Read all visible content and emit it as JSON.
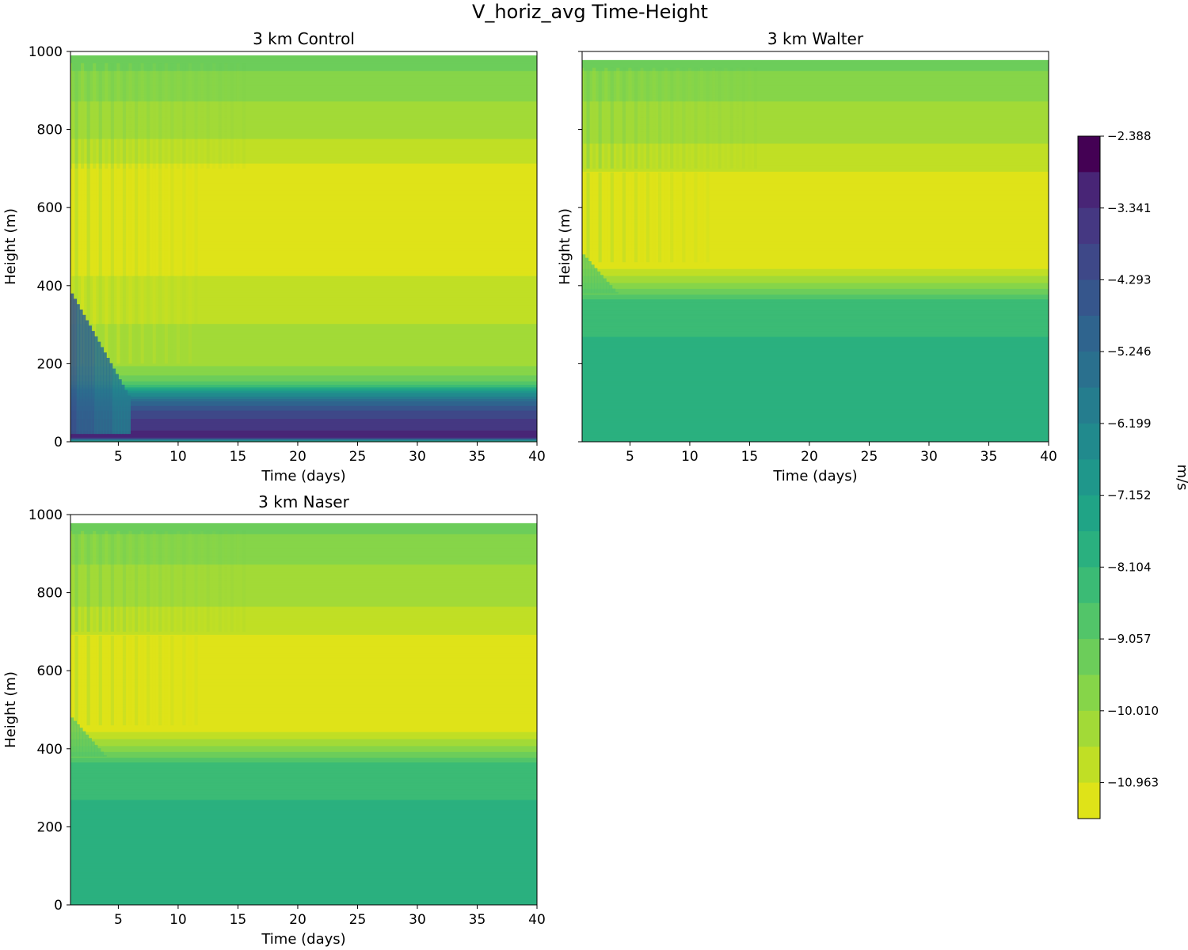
{
  "chart_data": {
    "type": "heatmap",
    "title": "V_horiz_avg Time-Height",
    "variable": "V_horiz_avg",
    "panels": [
      {
        "title": "3 km Control",
        "xlabel": "Time (days)",
        "ylabel": "Height (m)",
        "xlim": [
          1,
          40
        ],
        "ylim": [
          0,
          1000
        ],
        "xticks": [
          5,
          10,
          15,
          20,
          25,
          30,
          35,
          40
        ],
        "yticks": [
          0,
          200,
          400,
          600,
          800,
          1000
        ],
        "show_y_tick_labels": true,
        "data_top": 990,
        "profile": [
          {
            "h": 0,
            "v": -8.0
          },
          {
            "h": 12,
            "v": -2.6
          },
          {
            "h": 40,
            "v": -3.0
          },
          {
            "h": 70,
            "v": -3.5
          },
          {
            "h": 100,
            "v": -4.5
          },
          {
            "h": 130,
            "v": -6.5
          },
          {
            "h": 150,
            "v": -8.4
          },
          {
            "h": 175,
            "v": -9.2
          },
          {
            "h": 200,
            "v": -9.6
          },
          {
            "h": 250,
            "v": -9.8
          },
          {
            "h": 300,
            "v": -10.0
          },
          {
            "h": 360,
            "v": -10.3
          },
          {
            "h": 430,
            "v": -10.5
          },
          {
            "h": 450,
            "v": -10.8
          },
          {
            "h": 700,
            "v": -10.8
          },
          {
            "h": 720,
            "v": -10.3
          },
          {
            "h": 800,
            "v": -9.9
          },
          {
            "h": 880,
            "v": -9.5
          },
          {
            "h": 960,
            "v": -9.0
          },
          {
            "h": 990,
            "v": -8.6
          }
        ]
      },
      {
        "title": "3 km Walter",
        "xlabel": "Time (days)",
        "ylabel": "Height (m)",
        "xlim": [
          1,
          40
        ],
        "ylim": [
          0,
          1000
        ],
        "xticks": [
          5,
          10,
          15,
          20,
          25,
          30,
          35,
          40
        ],
        "yticks": [
          0,
          200,
          400,
          600,
          800,
          1000
        ],
        "show_y_tick_labels": false,
        "data_top": 978,
        "profile": [
          {
            "h": 0,
            "v": -7.4
          },
          {
            "h": 30,
            "v": -7.2
          },
          {
            "h": 200,
            "v": -7.3
          },
          {
            "h": 260,
            "v": -7.6
          },
          {
            "h": 360,
            "v": -7.9
          },
          {
            "h": 380,
            "v": -8.6
          },
          {
            "h": 410,
            "v": -9.6
          },
          {
            "h": 440,
            "v": -10.4
          },
          {
            "h": 460,
            "v": -10.8
          },
          {
            "h": 680,
            "v": -10.8
          },
          {
            "h": 700,
            "v": -10.3
          },
          {
            "h": 790,
            "v": -9.9
          },
          {
            "h": 880,
            "v": -9.5
          },
          {
            "h": 960,
            "v": -9.0
          },
          {
            "h": 978,
            "v": -8.6
          }
        ]
      },
      {
        "title": "3 km Naser",
        "xlabel": "Time (days)",
        "ylabel": "Height (m)",
        "xlim": [
          1,
          40
        ],
        "ylim": [
          0,
          1000
        ],
        "xticks": [
          5,
          10,
          15,
          20,
          25,
          30,
          35,
          40
        ],
        "yticks": [
          0,
          200,
          400,
          600,
          800,
          1000
        ],
        "show_y_tick_labels": true,
        "data_top": 978,
        "profile": [
          {
            "h": 0,
            "v": -7.4
          },
          {
            "h": 30,
            "v": -7.2
          },
          {
            "h": 200,
            "v": -7.3
          },
          {
            "h": 260,
            "v": -7.6
          },
          {
            "h": 360,
            "v": -7.9
          },
          {
            "h": 380,
            "v": -8.6
          },
          {
            "h": 410,
            "v": -9.6
          },
          {
            "h": 440,
            "v": -10.4
          },
          {
            "h": 460,
            "v": -10.8
          },
          {
            "h": 680,
            "v": -10.8
          },
          {
            "h": 700,
            "v": -10.3
          },
          {
            "h": 790,
            "v": -9.9
          },
          {
            "h": 880,
            "v": -9.5
          },
          {
            "h": 960,
            "v": -9.0
          },
          {
            "h": 978,
            "v": -8.6
          }
        ]
      }
    ],
    "colorbar": {
      "label": "m/s",
      "vmin": -11.44,
      "vmax": -2.388,
      "n_levels": 19,
      "tick_values": [
        -2.388,
        -3.341,
        -4.293,
        -5.246,
        -6.199,
        -7.152,
        -8.104,
        -9.057,
        -10.01,
        -10.963
      ],
      "tick_labels": [
        "−2.388",
        "−3.341",
        "−4.293",
        "−5.246",
        "−6.199",
        "−7.152",
        "−8.104",
        "−9.057",
        "−10.010",
        "−10.963"
      ],
      "colors": [
        "#fde725",
        "#dfe318",
        "#c0df25",
        "#a2da37",
        "#86d549",
        "#6ccd5a",
        "#52c569",
        "#3bbb75",
        "#2ab07f",
        "#20a486",
        "#1f978b",
        "#218a8d",
        "#257d8e",
        "#2a708e",
        "#2f648e",
        "#36568c",
        "#3e4888",
        "#453882",
        "#482576",
        "#440154"
      ]
    }
  }
}
